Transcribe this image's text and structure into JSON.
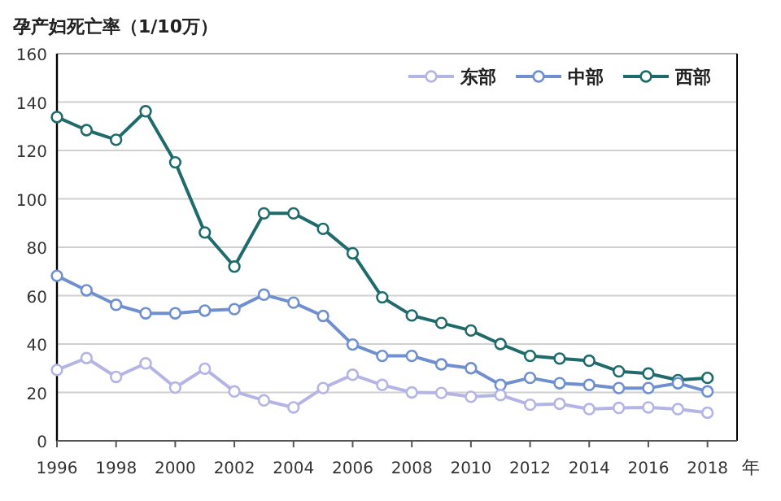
{
  "chart_data": {
    "type": "line",
    "title": "孕产妇死亡率（1/10万）",
    "xlabel": "年",
    "x": [
      1996,
      1997,
      1998,
      1999,
      2000,
      2001,
      2002,
      2003,
      2004,
      2005,
      2006,
      2007,
      2008,
      2009,
      2010,
      2011,
      2012,
      2013,
      2014,
      2015,
      2016,
      2017,
      2018
    ],
    "xlim": [
      1996,
      2019
    ],
    "xticks": [
      1996,
      1998,
      2000,
      2002,
      2004,
      2006,
      2008,
      2010,
      2012,
      2014,
      2016,
      2018
    ],
    "ylim": [
      0,
      160
    ],
    "yticks": [
      0,
      20,
      40,
      60,
      80,
      100,
      120,
      140,
      160
    ],
    "grid": "y",
    "legend": "top right",
    "marker": "circle",
    "series": [
      {
        "name": "东部",
        "color": "#b4b4e6",
        "values": [
          29.3,
          34.2,
          26.4,
          32,
          22,
          29.8,
          20.4,
          16.7,
          13.8,
          21.8,
          27.3,
          23.1,
          20,
          19.8,
          18.2,
          18.9,
          14.9,
          15.3,
          13.1,
          13.6,
          13.8,
          13.1,
          11.6
        ]
      },
      {
        "name": "中部",
        "color": "#6f8fce",
        "values": [
          68.2,
          62.2,
          56.2,
          52.7,
          52.7,
          53.8,
          54.4,
          60.4,
          57.1,
          51.6,
          39.8,
          35.1,
          35.1,
          31.6,
          30,
          23.1,
          26,
          23.8,
          23.1,
          21.8,
          21.8,
          23.8,
          20.4
        ]
      },
      {
        "name": "西部",
        "color": "#1f6b6b",
        "values": [
          133.8,
          128.4,
          124.4,
          136.2,
          115.1,
          86.1,
          72,
          94,
          94,
          87.6,
          77.5,
          59.3,
          51.8,
          48.7,
          45.6,
          40,
          35.1,
          34,
          33.1,
          28.7,
          27.8,
          25.1,
          26
        ]
      }
    ]
  }
}
